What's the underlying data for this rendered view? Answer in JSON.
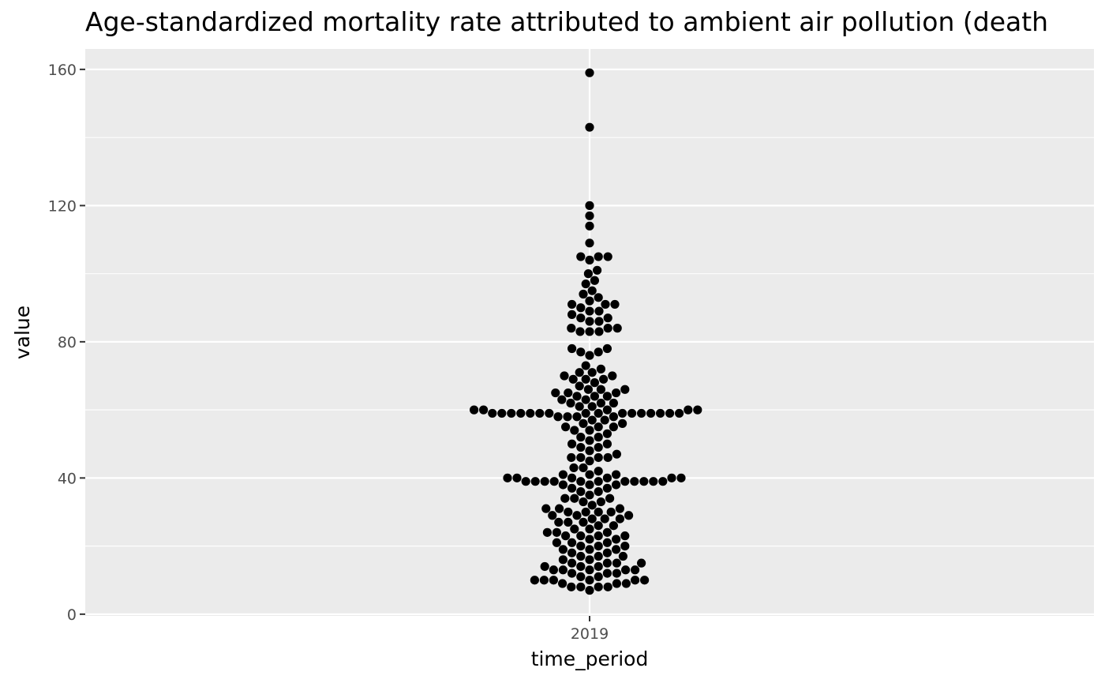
{
  "chart_data": {
    "type": "scatter",
    "subtype": "beeswarm",
    "title": "Age-standardized mortality rate attributed to ambient air pollution (death",
    "xlabel": "time_period",
    "ylabel": "value",
    "categories": [
      "2019"
    ],
    "ylim": [
      -0.5,
      166
    ],
    "yticks": [
      0,
      40,
      80,
      120,
      160
    ],
    "grid": true,
    "background": "#ebebeb",
    "grid_color": "#ffffff",
    "point_color": "#000000",
    "values": [
      159,
      143,
      120,
      117,
      114,
      109,
      105,
      105,
      105,
      104,
      101,
      100,
      98,
      97,
      95,
      94,
      93,
      92,
      91,
      91,
      91,
      90,
      89,
      89,
      88,
      87,
      87,
      86,
      86,
      84,
      84,
      84,
      83,
      83,
      83,
      78,
      78,
      77,
      77,
      76,
      73,
      72,
      71,
      71,
      70,
      70,
      69,
      69,
      69,
      68,
      67,
      66,
      66,
      66,
      65,
      65,
      65,
      64,
      64,
      64,
      63,
      63,
      62,
      62,
      62,
      61,
      61,
      60,
      60,
      60,
      60,
      60,
      59,
      59,
      59,
      59,
      59,
      59,
      59,
      59,
      59,
      59,
      59,
      59,
      59,
      59,
      59,
      59,
      58,
      58,
      58,
      58,
      57,
      57,
      56,
      56,
      55,
      55,
      55,
      54,
      54,
      53,
      52,
      52,
      51,
      50,
      50,
      49,
      49,
      48,
      47,
      46,
      46,
      46,
      46,
      45,
      43,
      43,
      42,
      41,
      41,
      41,
      40,
      40,
      40,
      40,
      40,
      40,
      39,
      39,
      39,
      39,
      39,
      39,
      39,
      39,
      39,
      39,
      39,
      38,
      38,
      38,
      37,
      37,
      36,
      36,
      35,
      34,
      34,
      34,
      33,
      33,
      32,
      31,
      31,
      31,
      30,
      30,
      30,
      30,
      29,
      29,
      29,
      28,
      28,
      28,
      27,
      27,
      27,
      26,
      26,
      25,
      25,
      24,
      24,
      24,
      23,
      23,
      23,
      23,
      22,
      22,
      21,
      21,
      21,
      20,
      20,
      20,
      19,
      19,
      19,
      18,
      18,
      17,
      17,
      17,
      16,
      16,
      15,
      15,
      15,
      15,
      14,
      14,
      14,
      13,
      13,
      13,
      13,
      13,
      12,
      12,
      12,
      11,
      11,
      10,
      10,
      10,
      10,
      10,
      10,
      9,
      9,
      9,
      8,
      8,
      8,
      8,
      7
    ]
  }
}
